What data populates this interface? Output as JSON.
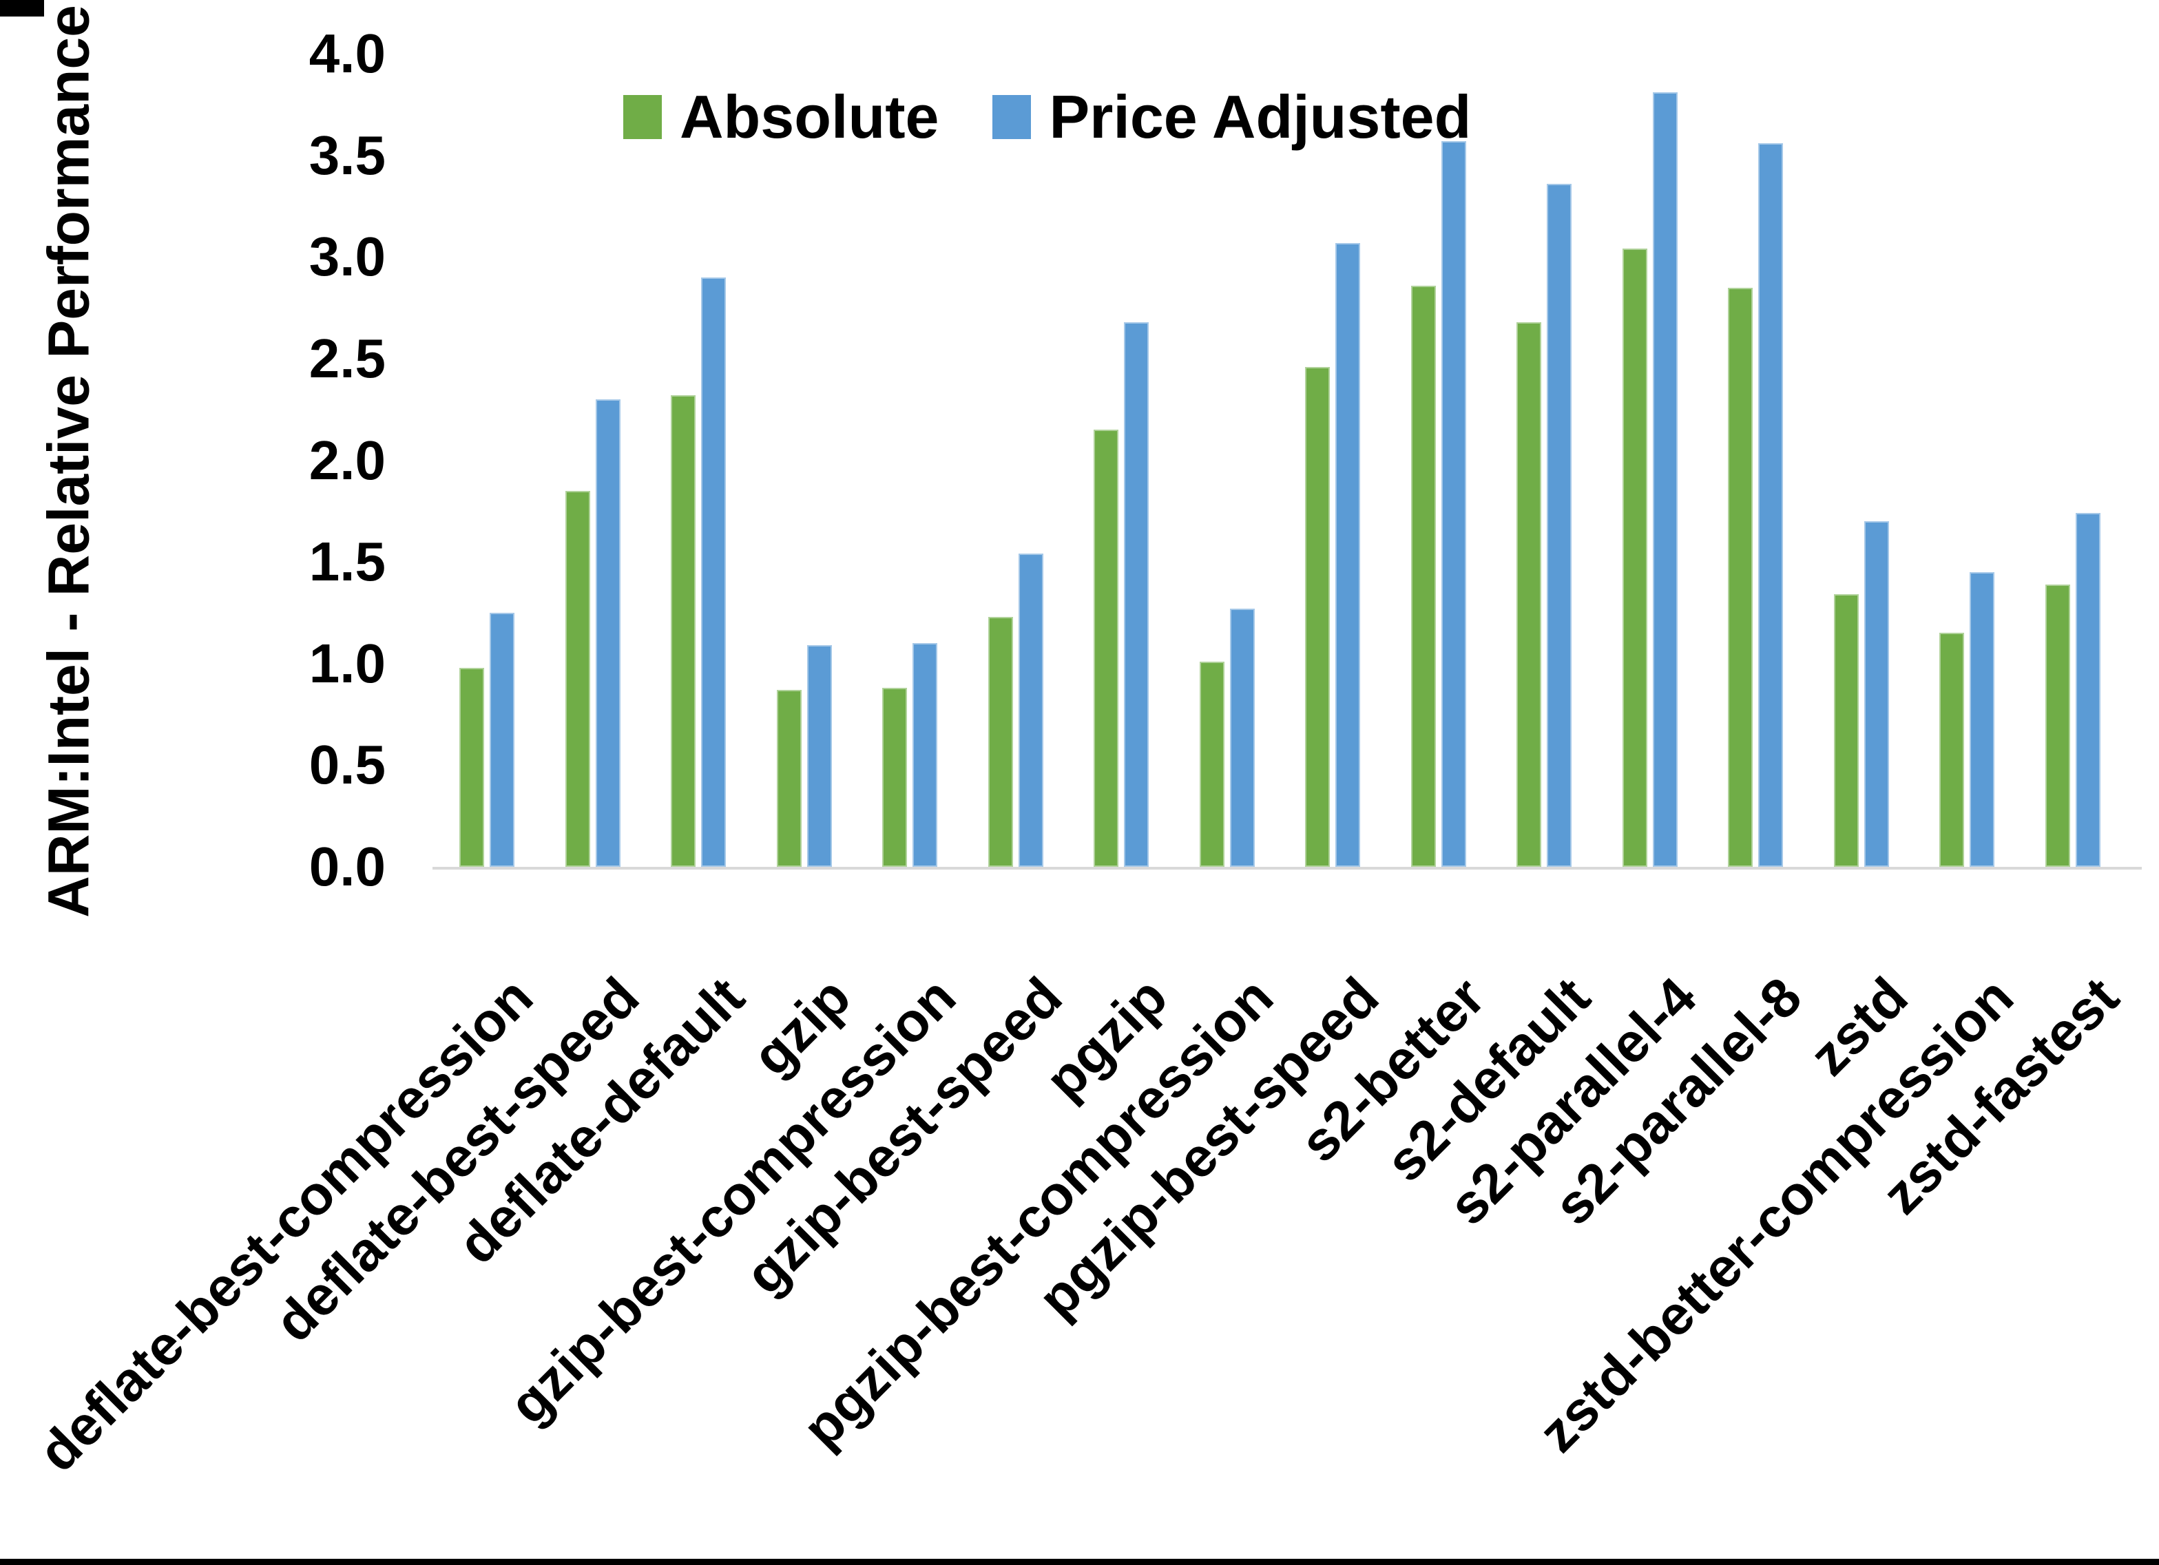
{
  "frame": {
    "bottom_bar_color": "#000000",
    "top_left_mark_color": "#000000",
    "background": "#FFFFFF"
  },
  "chart_data": {
    "type": "bar",
    "title": "",
    "xlabel": "",
    "ylabel": "ARM:Intel - Relative Performance",
    "ylim": [
      0.0,
      4.0
    ],
    "yticks": [
      0.0,
      0.5,
      1.0,
      1.5,
      2.0,
      2.5,
      3.0,
      3.5,
      4.0
    ],
    "ytick_format_decimals": 1,
    "grid": false,
    "legend_position": "top-center",
    "axis_line_color": "#D9D9D9",
    "text_color": "#000000",
    "categories": [
      "deflate-best-compression",
      "deflate-best-speed",
      "deflate-default",
      "gzip",
      "gzip-best-compression",
      "gzip-best-speed",
      "pgzip",
      "pgzip-best-compression",
      "pgzip-best-speed",
      "s2-better",
      "s2-default",
      "s2-parallel-4",
      "s2-parallel-8",
      "zstd",
      "zstd-better-compression",
      "zstd-fastest"
    ],
    "series": [
      {
        "name": "Absolute",
        "color": "#70AD47",
        "values": [
          0.98,
          1.85,
          2.32,
          0.87,
          0.88,
          1.23,
          2.15,
          1.01,
          2.46,
          2.86,
          2.68,
          3.04,
          2.85,
          1.34,
          1.15,
          1.39
        ]
      },
      {
        "name": "Price Adjusted",
        "color": "#5B9BD5",
        "values": [
          1.25,
          2.3,
          2.9,
          1.09,
          1.1,
          1.54,
          2.68,
          1.27,
          3.07,
          3.57,
          3.36,
          3.81,
          3.56,
          1.7,
          1.45,
          1.74
        ]
      }
    ]
  }
}
